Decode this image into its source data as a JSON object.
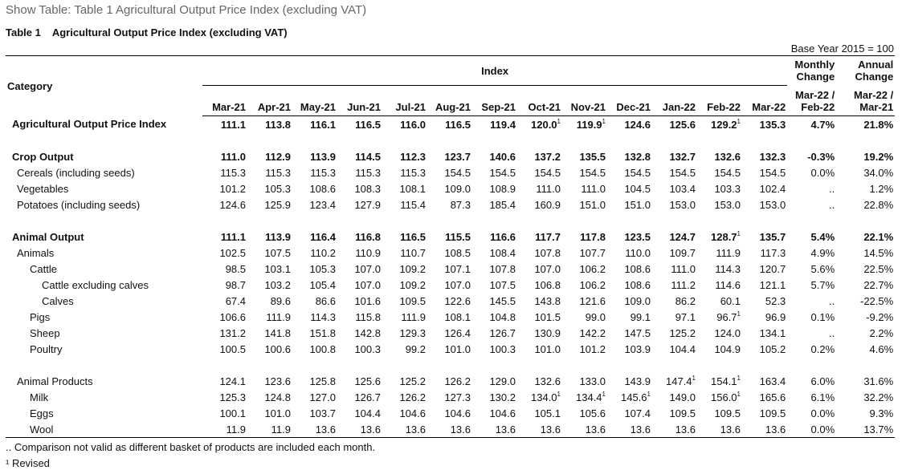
{
  "page_title": "Show Table: Table 1 Agricultural Output Price Index (excluding VAT)",
  "caption": {
    "label": "Table 1",
    "text": "Agricultural Output Price Index (excluding VAT)"
  },
  "base_year": "Base Year 2015 = 100",
  "header": {
    "category": "Category",
    "index": "Index",
    "monthly_change": [
      "Monthly",
      "Change"
    ],
    "annual_change": [
      "Annual",
      "Change"
    ],
    "months": [
      "Mar-21",
      "Apr-21",
      "May-21",
      "Jun-21",
      "Jul-21",
      "Aug-21",
      "Sep-21",
      "Oct-21",
      "Nov-21",
      "Dec-21",
      "Jan-22",
      "Feb-22",
      "Mar-22"
    ],
    "monthly_period": [
      "Mar-22 /",
      "Feb-22"
    ],
    "annual_period": [
      "Mar-22 /",
      "Mar-21"
    ]
  },
  "rows": [
    {
      "label": "Agricultural Output Price Index",
      "level": 0,
      "bold": true,
      "values": [
        "111.1",
        "113.8",
        "116.1",
        "116.5",
        "116.0",
        "116.5",
        "119.4",
        "120.0¹",
        "119.9¹",
        "124.6",
        "125.6",
        "129.2¹",
        "135.3"
      ],
      "monthly": "4.7%",
      "annual": "21.8%"
    },
    {
      "spacer": true
    },
    {
      "label": "Crop Output",
      "level": 0,
      "bold": true,
      "values": [
        "111.0",
        "112.9",
        "113.9",
        "114.5",
        "112.3",
        "123.7",
        "140.6",
        "137.2",
        "135.5",
        "132.8",
        "132.7",
        "132.6",
        "132.3"
      ],
      "monthly": "-0.3%",
      "annual": "19.2%"
    },
    {
      "label": "Cereals (including seeds)",
      "level": 1,
      "values": [
        "115.3",
        "115.3",
        "115.3",
        "115.3",
        "115.3",
        "154.5",
        "154.5",
        "154.5",
        "154.5",
        "154.5",
        "154.5",
        "154.5",
        "154.5"
      ],
      "monthly": "0.0%",
      "annual": "34.0%"
    },
    {
      "label": "Vegetables",
      "level": 1,
      "values": [
        "101.2",
        "105.3",
        "108.6",
        "108.3",
        "108.1",
        "109.0",
        "108.9",
        "111.0",
        "111.0",
        "104.5",
        "103.4",
        "103.3",
        "102.4"
      ],
      "monthly": "..",
      "annual": "1.2%"
    },
    {
      "label": "Potatoes (including seeds)",
      "level": 1,
      "values": [
        "124.6",
        "125.9",
        "123.4",
        "127.9",
        "115.4",
        "87.3",
        "185.4",
        "160.9",
        "151.0",
        "151.0",
        "153.0",
        "153.0",
        "153.0"
      ],
      "monthly": "..",
      "annual": "22.8%"
    },
    {
      "spacer": true
    },
    {
      "label": "Animal Output",
      "level": 0,
      "bold": true,
      "values": [
        "111.1",
        "113.9",
        "116.4",
        "116.8",
        "116.5",
        "115.5",
        "116.6",
        "117.7",
        "117.8",
        "123.5",
        "124.7",
        "128.7¹",
        "135.7"
      ],
      "monthly": "5.4%",
      "annual": "22.1%"
    },
    {
      "label": "Animals",
      "level": 1,
      "values": [
        "102.5",
        "107.5",
        "110.2",
        "110.9",
        "110.7",
        "108.5",
        "108.4",
        "107.8",
        "107.7",
        "110.0",
        "109.7",
        "111.9",
        "117.3"
      ],
      "monthly": "4.9%",
      "annual": "14.5%"
    },
    {
      "label": "Cattle",
      "level": 2,
      "values": [
        "98.5",
        "103.1",
        "105.3",
        "107.0",
        "109.2",
        "107.1",
        "107.8",
        "107.0",
        "106.2",
        "108.6",
        "111.0",
        "114.3",
        "120.7"
      ],
      "monthly": "5.6%",
      "annual": "22.5%"
    },
    {
      "label": "Cattle excluding calves",
      "level": 3,
      "values": [
        "98.7",
        "103.2",
        "105.4",
        "107.0",
        "109.2",
        "107.0",
        "107.5",
        "106.8",
        "106.2",
        "108.6",
        "111.2",
        "114.6",
        "121.1"
      ],
      "monthly": "5.7%",
      "annual": "22.7%"
    },
    {
      "label": "Calves",
      "level": 3,
      "values": [
        "67.4",
        "89.6",
        "86.6",
        "101.6",
        "109.5",
        "122.6",
        "145.5",
        "143.8",
        "121.6",
        "109.0",
        "86.2",
        "60.1",
        "52.3"
      ],
      "monthly": "..",
      "annual": "-22.5%"
    },
    {
      "label": "Pigs",
      "level": 2,
      "values": [
        "106.6",
        "111.9",
        "114.3",
        "115.8",
        "111.9",
        "108.1",
        "104.8",
        "101.5",
        "99.0",
        "99.1",
        "97.1",
        "96.7¹",
        "96.9"
      ],
      "monthly": "0.1%",
      "annual": "-9.2%"
    },
    {
      "label": "Sheep",
      "level": 2,
      "values": [
        "131.2",
        "141.8",
        "151.8",
        "142.8",
        "129.3",
        "126.4",
        "126.7",
        "130.9",
        "142.2",
        "147.5",
        "125.2",
        "124.0",
        "134.1"
      ],
      "monthly": "..",
      "annual": "2.2%"
    },
    {
      "label": "Poultry",
      "level": 2,
      "values": [
        "100.5",
        "100.6",
        "100.8",
        "100.3",
        "99.2",
        "101.0",
        "100.3",
        "101.0",
        "101.2",
        "103.9",
        "104.4",
        "104.9",
        "105.2"
      ],
      "monthly": "0.2%",
      "annual": "4.6%"
    },
    {
      "spacer": true
    },
    {
      "label": "Animal Products",
      "level": 1,
      "values": [
        "124.1",
        "123.6",
        "125.8",
        "125.6",
        "125.2",
        "126.2",
        "129.0",
        "132.6",
        "133.0",
        "143.9",
        "147.4¹",
        "154.1¹",
        "163.4"
      ],
      "monthly": "6.0%",
      "annual": "31.6%"
    },
    {
      "label": "Milk",
      "level": 2,
      "values": [
        "125.3",
        "124.8",
        "127.0",
        "126.7",
        "126.2",
        "127.3",
        "130.2",
        "134.0¹",
        "134.4¹",
        "145.6¹",
        "149.0",
        "156.0¹",
        "165.6"
      ],
      "monthly": "6.1%",
      "annual": "32.2%"
    },
    {
      "label": "Eggs",
      "level": 2,
      "values": [
        "100.1",
        "101.0",
        "103.7",
        "104.4",
        "104.6",
        "104.6",
        "104.6",
        "105.1",
        "105.6",
        "107.4",
        "109.5",
        "109.5",
        "109.5"
      ],
      "monthly": "0.0%",
      "annual": "9.3%"
    },
    {
      "label": "Wool",
      "level": 2,
      "values": [
        "11.9",
        "11.9",
        "13.6",
        "13.6",
        "13.6",
        "13.6",
        "13.6",
        "13.6",
        "13.6",
        "13.6",
        "13.6",
        "13.6",
        "13.6"
      ],
      "monthly": "0.0%",
      "annual": "13.7%"
    }
  ],
  "footnotes": [
    ".. Comparison not valid as different basket of products are included each month.",
    "¹ Revised"
  ]
}
